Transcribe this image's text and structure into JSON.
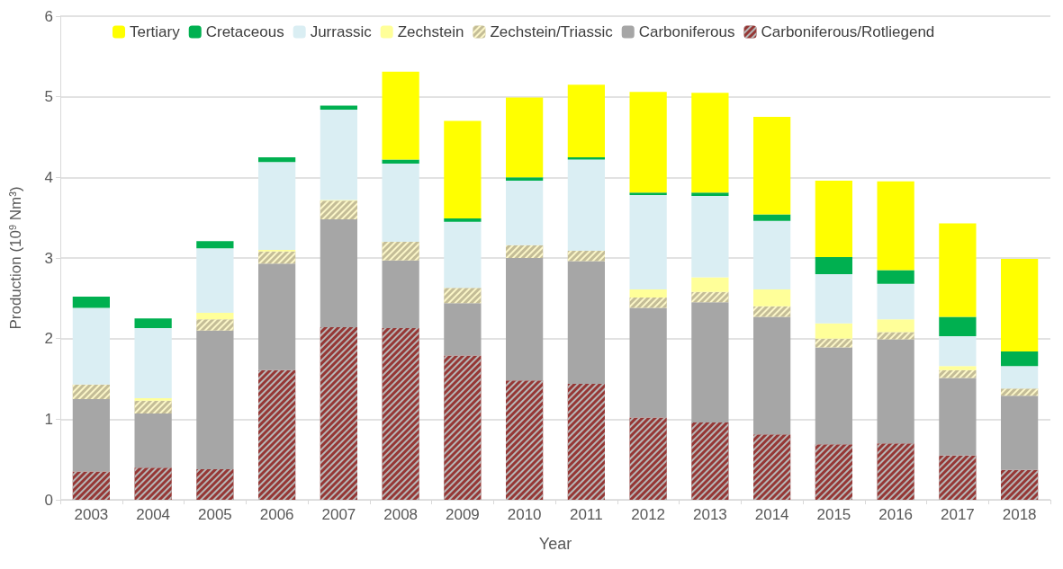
{
  "chart_data": {
    "type": "bar",
    "stacked": true,
    "xlabel": "Year",
    "ylabel": "Production (10$^{9}$ Nm³)",
    "categories": [
      "2003",
      "2004",
      "2005",
      "2006",
      "2007",
      "2008",
      "2009",
      "2010",
      "2011",
      "2012",
      "2013",
      "2014",
      "2015",
      "2016",
      "2017",
      "2018"
    ],
    "ylim": [
      0,
      6
    ],
    "yticks": [
      0,
      1,
      2,
      3,
      4,
      5,
      6
    ],
    "grid": "y",
    "legend": "top left",
    "series": [
      {
        "name": "Carboniferous/Rotliegend",
        "color": "#953735",
        "values": [
          0.35,
          0.4,
          0.38,
          1.61,
          2.14,
          2.13,
          1.79,
          1.48,
          1.44,
          1.02,
          0.96,
          0.81,
          0.69,
          0.7,
          0.55,
          0.37
        ]
      },
      {
        "name": "Carboniferous",
        "color": "#a6a6a6",
        "values": [
          0.9,
          0.67,
          1.72,
          1.32,
          1.34,
          0.84,
          0.65,
          1.52,
          1.52,
          1.36,
          1.49,
          1.46,
          1.2,
          1.29,
          0.96,
          0.92
        ]
      },
      {
        "name": "Zechstein/Triassic",
        "color": "#c4bd97",
        "values": [
          0.18,
          0.16,
          0.14,
          0.15,
          0.23,
          0.23,
          0.19,
          0.16,
          0.13,
          0.13,
          0.13,
          0.13,
          0.11,
          0.09,
          0.1,
          0.09
        ]
      },
      {
        "name": "Zechstein",
        "color": "#ffff99",
        "values": [
          0,
          0.03,
          0.08,
          0.02,
          0.01,
          0,
          0,
          0,
          0,
          0.1,
          0.18,
          0.21,
          0.19,
          0.16,
          0.05,
          0
        ]
      },
      {
        "name": "Jurrassic",
        "color": "#daeef3",
        "values": [
          0.95,
          0.87,
          0.8,
          1.09,
          1.12,
          0.97,
          0.82,
          0.8,
          1.13,
          1.17,
          1.01,
          0.85,
          0.61,
          0.44,
          0.37,
          0.28
        ]
      },
      {
        "name": "Cretaceous",
        "color": "#00b050",
        "values": [
          0.14,
          0.12,
          0.09,
          0.06,
          0.05,
          0.05,
          0.04,
          0.04,
          0.03,
          0.03,
          0.04,
          0.08,
          0.21,
          0.17,
          0.24,
          0.18
        ]
      },
      {
        "name": "Tertiary",
        "color": "#ffff00",
        "values": [
          0,
          0,
          0,
          0,
          0,
          1.09,
          1.21,
          0.99,
          0.9,
          1.25,
          1.24,
          1.21,
          0.95,
          1.1,
          1.16,
          1.15
        ]
      }
    ]
  }
}
